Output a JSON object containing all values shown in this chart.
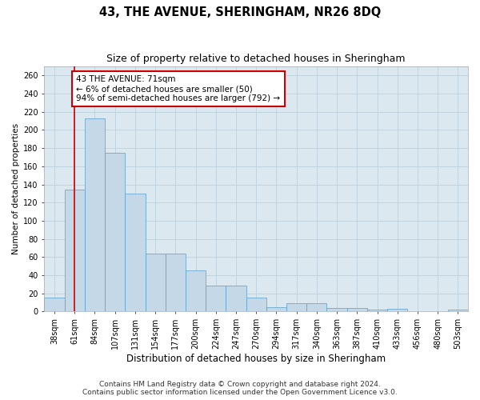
{
  "title": "43, THE AVENUE, SHERINGHAM, NR26 8DQ",
  "subtitle": "Size of property relative to detached houses in Sheringham",
  "xlabel": "Distribution of detached houses by size in Sheringham",
  "ylabel": "Number of detached properties",
  "bin_labels": [
    "38sqm",
    "61sqm",
    "84sqm",
    "107sqm",
    "131sqm",
    "154sqm",
    "177sqm",
    "200sqm",
    "224sqm",
    "247sqm",
    "270sqm",
    "294sqm",
    "317sqm",
    "340sqm",
    "363sqm",
    "387sqm",
    "410sqm",
    "433sqm",
    "456sqm",
    "480sqm",
    "503sqm"
  ],
  "bar_heights": [
    15,
    134,
    213,
    175,
    130,
    64,
    64,
    45,
    29,
    29,
    15,
    5,
    9,
    9,
    4,
    4,
    2,
    3,
    0,
    0,
    2
  ],
  "bar_color": "#c5d8e8",
  "bar_edge_color": "#5a9ec9",
  "vline_x": 1.0,
  "vline_color": "#cc0000",
  "annotation_text": "43 THE AVENUE: 71sqm\n← 6% of detached houses are smaller (50)\n94% of semi-detached houses are larger (792) →",
  "annotation_box_color": "#ffffff",
  "annotation_box_edge": "#cc0000",
  "ylim": [
    0,
    270
  ],
  "yticks": [
    0,
    20,
    40,
    60,
    80,
    100,
    120,
    140,
    160,
    180,
    200,
    220,
    240,
    260
  ],
  "background_color": "#dce8f0",
  "footer_line1": "Contains HM Land Registry data © Crown copyright and database right 2024.",
  "footer_line2": "Contains public sector information licensed under the Open Government Licence v3.0.",
  "title_fontsize": 10.5,
  "subtitle_fontsize": 9,
  "xlabel_fontsize": 8.5,
  "ylabel_fontsize": 7.5,
  "tick_fontsize": 7,
  "footer_fontsize": 6.5,
  "annotation_fontsize": 7.5
}
